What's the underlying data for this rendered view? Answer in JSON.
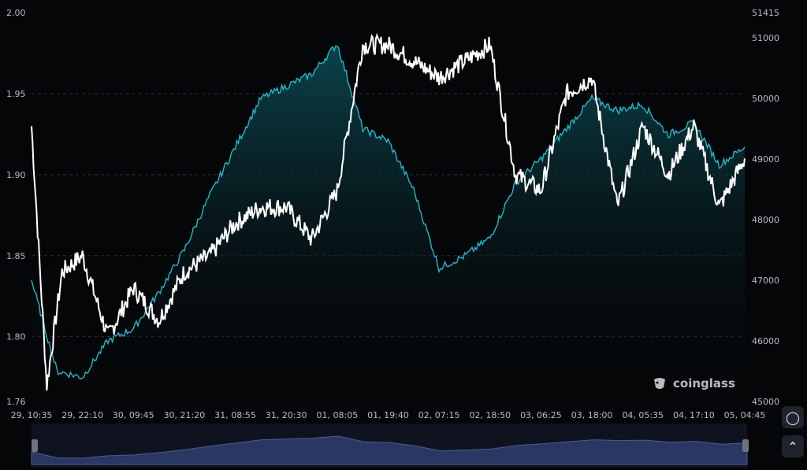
{
  "brand": {
    "name": "coinglass"
  },
  "controls": {
    "settings_icon": "clock-settings-icon",
    "collapse_icon": "chevron-up-icon"
  },
  "colors": {
    "background": "#050608",
    "price_line": "#ffffff",
    "series_line": "#25b6c9",
    "area_top": "#0c4a52",
    "navigator": "#2a3763"
  },
  "chart_data": {
    "type": "line",
    "x_ticks": [
      "29, 10:35",
      "29, 22:10",
      "30, 09:45",
      "30, 21:20",
      "31, 08:55",
      "31, 20:30",
      "01, 08:05",
      "01, 19:40",
      "02, 07:15",
      "02, 18:50",
      "03, 06:25",
      "03, 18:00",
      "04, 05:35",
      "04, 17:10",
      "05, 04:45"
    ],
    "y_left": {
      "ticks": [
        "1.76",
        "1.80",
        "1.85",
        "1.90",
        "1.95",
        "2.00"
      ],
      "range": [
        1.76,
        2.0
      ]
    },
    "y_right": {
      "ticks": [
        "45000",
        "46000",
        "47000",
        "48000",
        "49000",
        "50000",
        "51000",
        "51415"
      ],
      "range": [
        45000,
        51415
      ]
    },
    "series": [
      {
        "axis": "left",
        "color": "#ffffff",
        "x": [
          0,
          0.3,
          0.6,
          1,
          1.5,
          2,
          2.5,
          3,
          3.5,
          4,
          4.5,
          5,
          5.5,
          6,
          6.5,
          7,
          7.5,
          8,
          8.5,
          9,
          9.5,
          10,
          10.5,
          11,
          11.5,
          12,
          12.5,
          13,
          13.5,
          14
        ],
        "values": [
          1.93,
          1.77,
          1.84,
          1.85,
          1.8,
          1.83,
          1.81,
          1.84,
          1.85,
          1.87,
          1.88,
          1.88,
          1.86,
          1.89,
          1.98,
          1.98,
          1.97,
          1.96,
          1.97,
          1.98,
          1.9,
          1.89,
          1.95,
          1.96,
          1.88,
          1.93,
          1.9,
          1.93,
          1.88,
          1.91
        ]
      },
      {
        "axis": "right",
        "color": "#25b6c9",
        "x": [
          0,
          0.5,
          1,
          1.5,
          2,
          2.5,
          3,
          3.5,
          4,
          4.5,
          5,
          5.5,
          6,
          6.5,
          7,
          7.5,
          8,
          8.5,
          9,
          9.5,
          10,
          10.5,
          11,
          11.5,
          12,
          12.5,
          13,
          13.5,
          14
        ],
        "values": [
          47000,
          45500,
          45400,
          46000,
          46200,
          46800,
          47500,
          48400,
          49200,
          50000,
          50200,
          50400,
          50900,
          49500,
          49300,
          48500,
          47200,
          47400,
          47700,
          48600,
          49000,
          49500,
          50000,
          49800,
          49900,
          49400,
          49600,
          48900,
          49200
        ]
      }
    ]
  }
}
